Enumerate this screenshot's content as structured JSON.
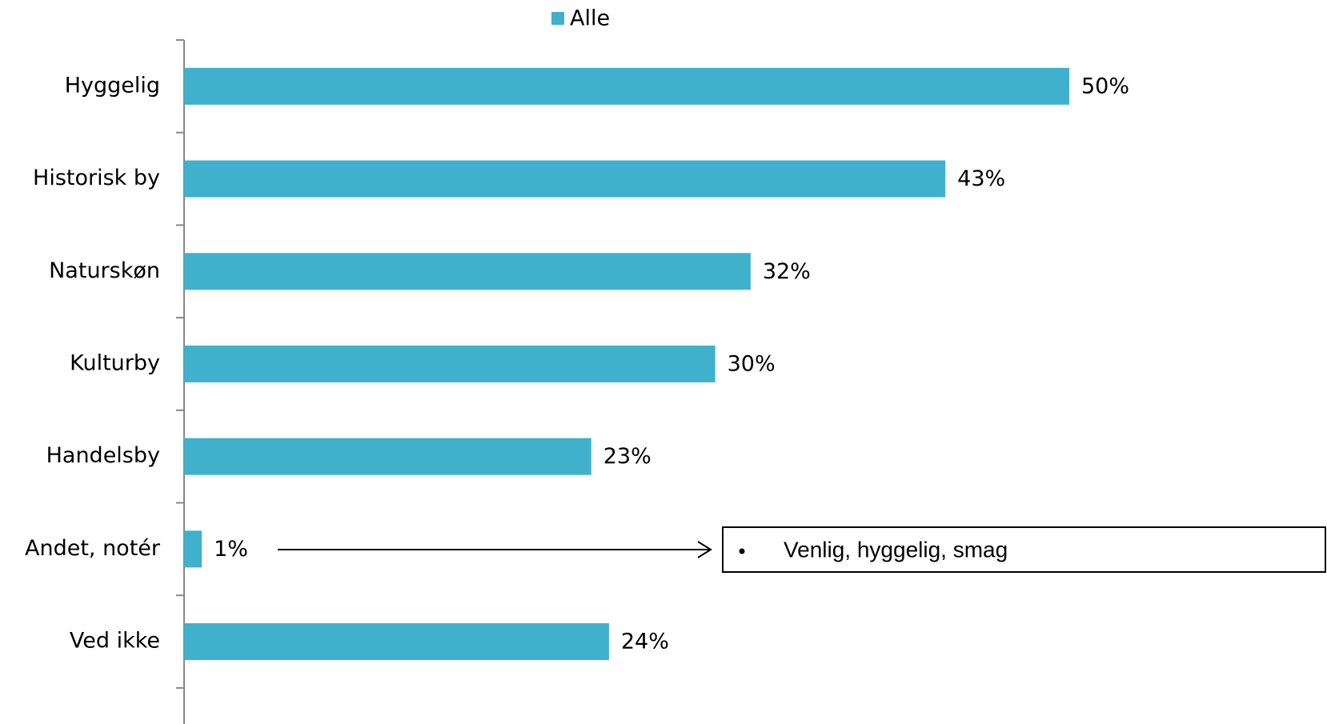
{
  "chart_data": {
    "type": "bar",
    "orientation": "horizontal",
    "categories": [
      "Hyggelig",
      "Historisk by",
      "Naturskøn",
      "Kulturby",
      "Handelsby",
      "Andet, notér",
      "Ved ikke"
    ],
    "series": [
      {
        "name": "Alle",
        "color": "#3fb1cc",
        "values": [
          50,
          43,
          32,
          30,
          23,
          1,
          24
        ],
        "value_labels": [
          "50%",
          "43%",
          "32%",
          "30%",
          "23%",
          "1%",
          "24%"
        ]
      }
    ],
    "legend": "top",
    "annotation": "Venlig, hyggelig, smag"
  }
}
